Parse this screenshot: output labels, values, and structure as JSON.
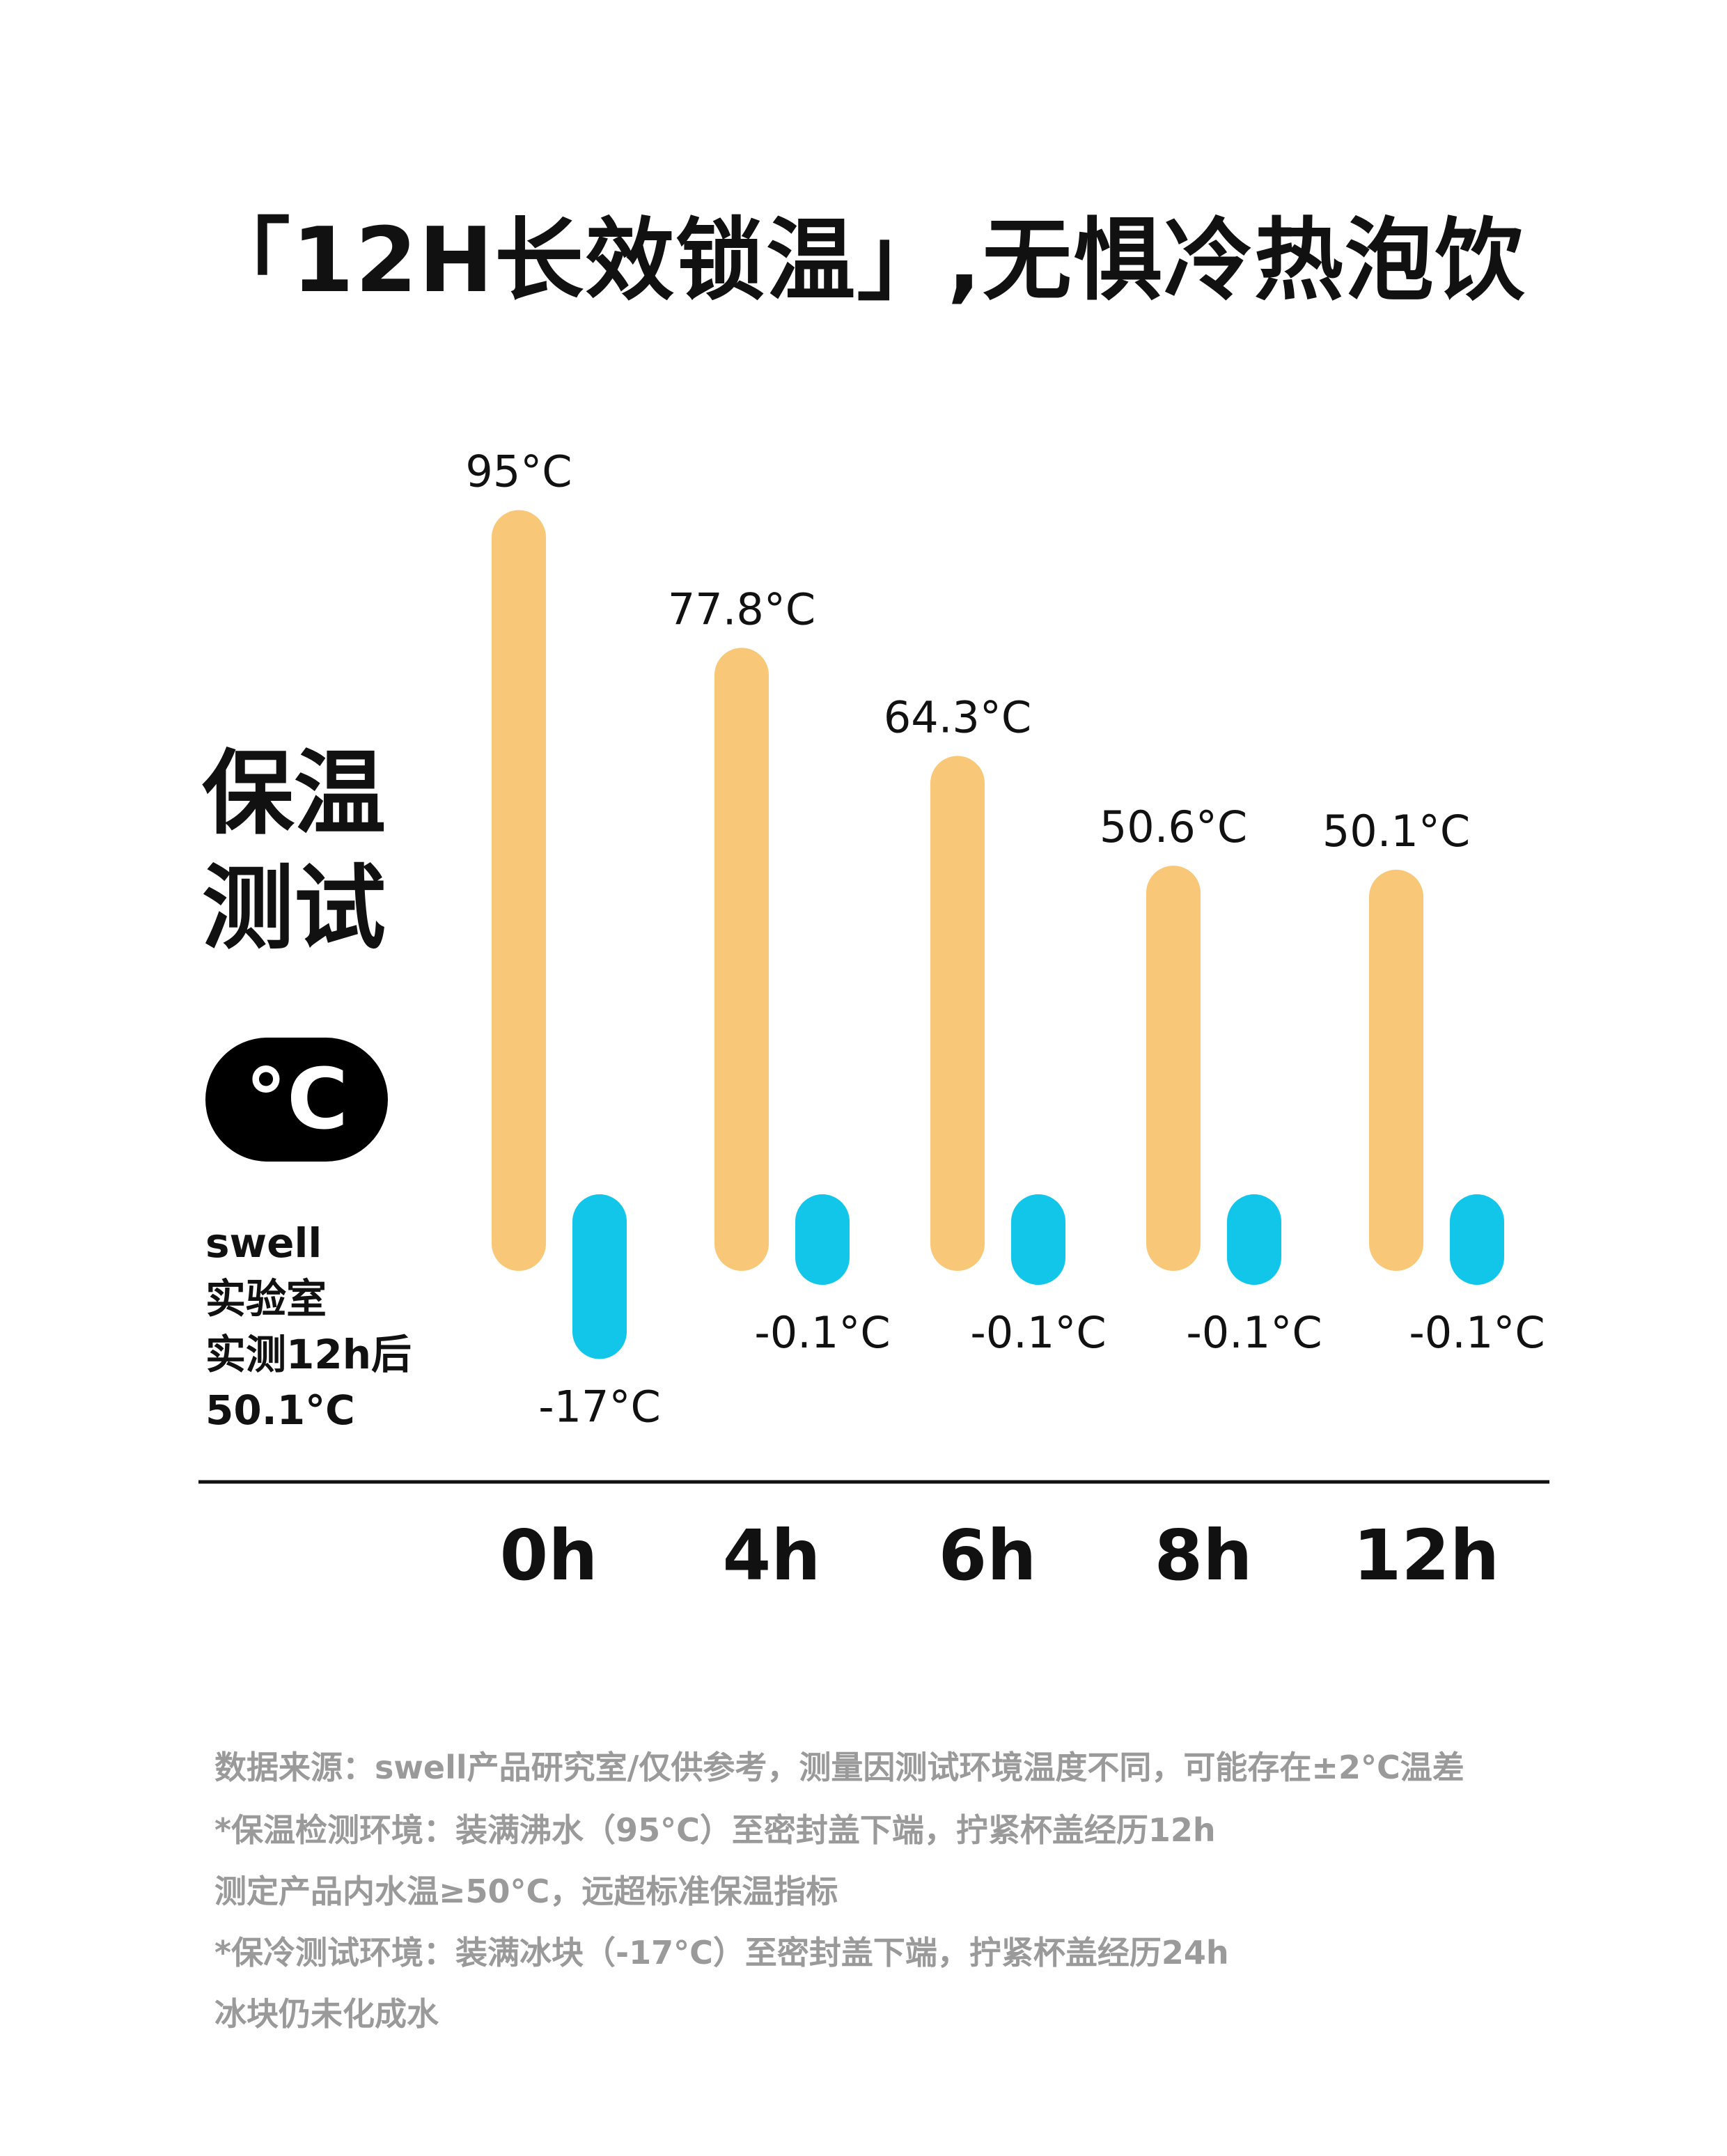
{
  "title": "「12H长效锁温」,无惧冷热泡饮",
  "side_title": [
    "保温",
    "测试"
  ],
  "unit_badge": "°C",
  "side_note": [
    "swell",
    "实验室",
    "实测12h后",
    "50.1°C"
  ],
  "colors": {
    "hot": "#F8C878",
    "cold": "#12C6EA",
    "axis": "#111111",
    "footnote": "#9a9a9a"
  },
  "chart_data": {
    "type": "bar",
    "categories": [
      "0h",
      "4h",
      "6h",
      "8h",
      "12h"
    ],
    "series": [
      {
        "values": [
          95,
          77.8,
          64.3,
          50.6,
          50.1
        ]
      },
      {
        "values": [
          -17,
          -0.1,
          -0.1,
          -0.1,
          -0.1
        ]
      }
    ],
    "hot_labels": [
      "95°C",
      "77.8°C",
      "64.3°C",
      "50.6°C",
      "50.1°C"
    ],
    "cold_labels": [
      "-17°C",
      "-0.1°C",
      "-0.1°C",
      "-0.1°C",
      "-0.1°C"
    ],
    "ylim": [
      -17,
      95
    ],
    "grid": false
  },
  "footnotes": [
    "数据来源：swell产品研究室/仅供参考，测量因测试环境温度不同，可能存在±2°C温差",
    "*保温检测环境：装满沸水（95°C）至密封盖下端，拧紧杯盖经历12h",
    "测定产品内水温≥50°C，远超标准保温指标",
    "*保冷测试环境：装满冰块（-17°C）至密封盖下端，拧紧杯盖经历24h",
    "冰块仍未化成水"
  ]
}
